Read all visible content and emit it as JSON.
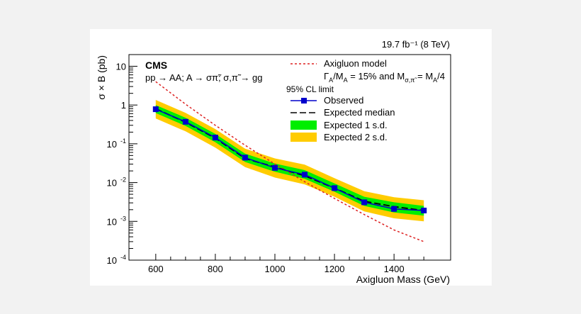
{
  "lumi_label": "19.7 fb⁻¹ (8 TeV)",
  "chart_data": {
    "type": "line",
    "title": "",
    "experiment_label": "CMS",
    "process_label": "pp → AA; A → σπ̃; σ,π̃ → gg",
    "xlabel": "Axigluon Mass (GeV)",
    "ylabel_text": "σ × B (pb)",
    "yscale": "log",
    "xlim": [
      510,
      1590
    ],
    "ylim": [
      0.0001,
      20
    ],
    "x_ticks": [
      {
        "v": 600,
        "label": "600"
      },
      {
        "v": 800,
        "label": "800"
      },
      {
        "v": 1000,
        "label": "1000"
      },
      {
        "v": 1200,
        "label": "1200"
      },
      {
        "v": 1400,
        "label": "1400"
      }
    ],
    "y_ticks": [
      {
        "exp": 1,
        "base": "10",
        "sup": ""
      },
      {
        "exp": 0,
        "base": "1",
        "sup": ""
      },
      {
        "exp": -1,
        "base": "10",
        "sup": "-1"
      },
      {
        "exp": -2,
        "base": "10",
        "sup": "-2"
      },
      {
        "exp": -3,
        "base": "10",
        "sup": "-3"
      },
      {
        "exp": -4,
        "base": "10",
        "sup": "-4"
      }
    ],
    "legend": {
      "placement": "top-right",
      "model_label": "Axigluon model",
      "model_params": "ΓA/MA = 15% and Mσ,π̃ = MA/4",
      "model_params_parts": [
        "Γ",
        "A",
        "/M",
        "A",
        " = 15% and M",
        "σ,π̃",
        " = M",
        "A",
        "/4"
      ],
      "cl_header": "95% CL limit",
      "observed": "Observed",
      "expected_median": "Expected median",
      "expected_1sd": "Expected 1 s.d.",
      "expected_2sd": "Expected 2 s.d."
    },
    "colors": {
      "observed": "#0000cc",
      "model": "#dd2222",
      "band_1sd": "#00ee00",
      "band_2sd": "#ffcc00",
      "median": "#000000"
    },
    "x": [
      600,
      700,
      800,
      900,
      1000,
      1100,
      1200,
      1300,
      1400,
      1500
    ],
    "series": [
      {
        "name": "Observed",
        "values": [
          0.78,
          0.37,
          0.145,
          0.044,
          0.024,
          0.016,
          0.0072,
          0.0031,
          0.0021,
          0.0019
        ]
      },
      {
        "name": "Expected median",
        "values": [
          0.8,
          0.36,
          0.14,
          0.042,
          0.025,
          0.015,
          0.0072,
          0.0033,
          0.0024,
          0.0019
        ]
      }
    ],
    "band_1sd": {
      "low": [
        0.62,
        0.29,
        0.11,
        0.034,
        0.019,
        0.0125,
        0.0058,
        0.0025,
        0.0017,
        0.0014
      ],
      "high": [
        1.0,
        0.47,
        0.18,
        0.056,
        0.031,
        0.021,
        0.0095,
        0.0043,
        0.0031,
        0.0025
      ]
    },
    "band_2sd": {
      "low": [
        0.45,
        0.21,
        0.08,
        0.025,
        0.0135,
        0.009,
        0.0043,
        0.0018,
        0.0012,
        0.001
      ],
      "high": [
        1.35,
        0.63,
        0.24,
        0.075,
        0.042,
        0.029,
        0.013,
        0.006,
        0.0042,
        0.0035
      ]
    },
    "model_curve": {
      "name": "Axigluon model",
      "x": [
        600,
        700,
        800,
        900,
        1000,
        1100,
        1200,
        1300,
        1400,
        1500
      ],
      "values": [
        4.0,
        1.05,
        0.3,
        0.092,
        0.03,
        0.0105,
        0.0039,
        0.0015,
        0.0006,
        0.0003
      ]
    }
  }
}
